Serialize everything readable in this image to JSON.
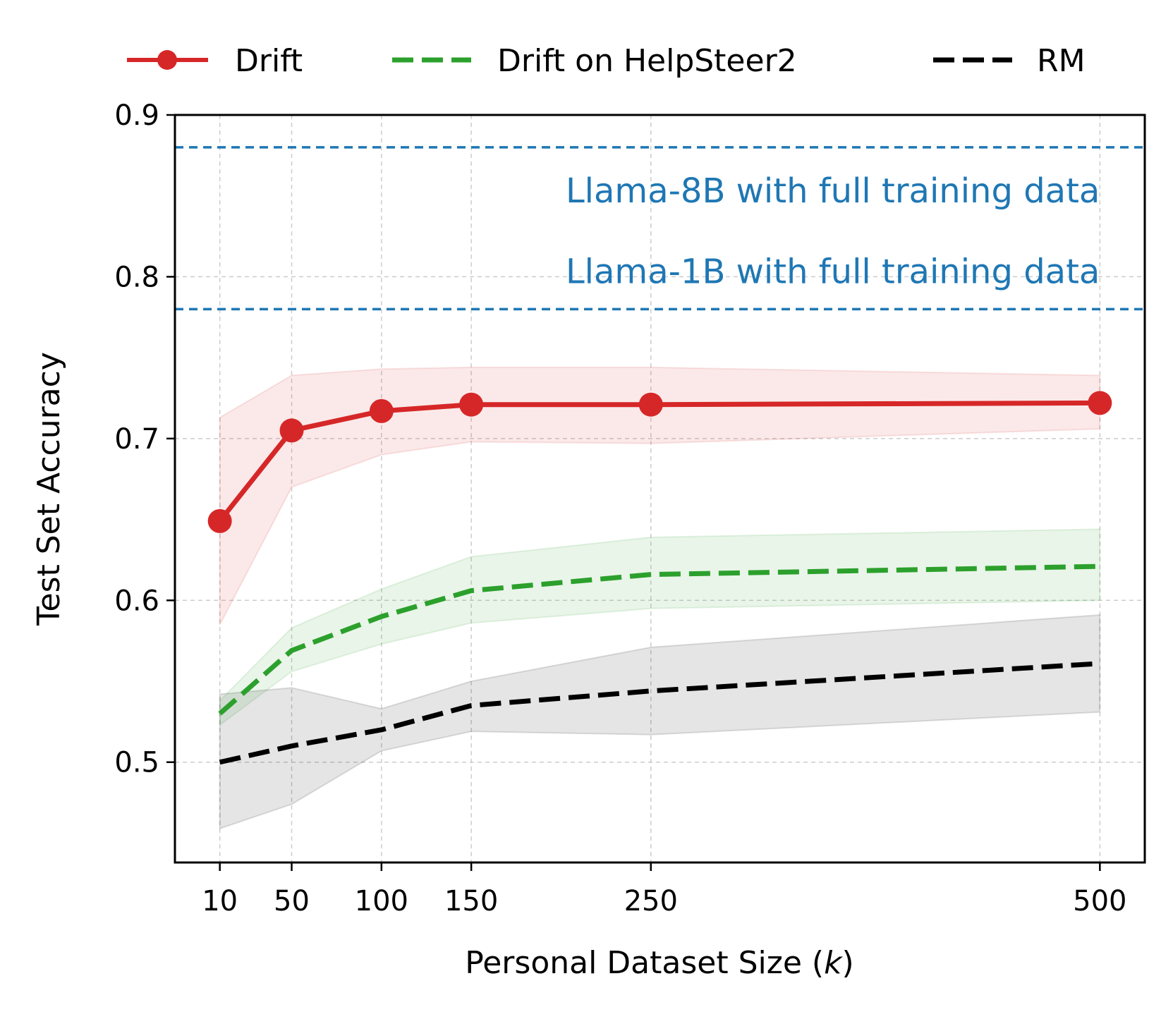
{
  "chart_data": {
    "type": "line",
    "title": "",
    "xlabel_prefix": "Personal Dataset Size (",
    "xlabel_var": "k",
    "xlabel_suffix": ")",
    "ylabel": "Test Set Accuracy",
    "x": [
      10,
      50,
      100,
      150,
      250,
      500
    ],
    "x_tick_labels": [
      "10",
      "50",
      "100",
      "150",
      "250",
      "500"
    ],
    "xlim": [
      -15,
      525
    ],
    "ylim": [
      0.438,
      0.9
    ],
    "y_ticks": [
      0.5,
      0.6,
      0.7,
      0.8,
      0.9
    ],
    "y_tick_labels": [
      "0.5",
      "0.6",
      "0.7",
      "0.8",
      "0.9"
    ],
    "grid": true,
    "legend_position": "top",
    "series": [
      {
        "name": "Drift",
        "style": "solid-marker",
        "color": "#d62728",
        "values": [
          0.649,
          0.705,
          0.717,
          0.721,
          0.721,
          0.722
        ],
        "lower": [
          0.585,
          0.67,
          0.69,
          0.698,
          0.697,
          0.706
        ],
        "upper": [
          0.713,
          0.739,
          0.743,
          0.744,
          0.744,
          0.739
        ]
      },
      {
        "name": "Drift on HelpSteer2",
        "style": "dashed",
        "color": "#2ca02c",
        "values": [
          0.53,
          0.569,
          0.59,
          0.606,
          0.616,
          0.621
        ],
        "lower": [
          0.523,
          0.556,
          0.573,
          0.586,
          0.595,
          0.6
        ],
        "upper": [
          0.538,
          0.583,
          0.607,
          0.627,
          0.639,
          0.644
        ]
      },
      {
        "name": "RM",
        "style": "dashed",
        "color": "#000000",
        "values": [
          0.5,
          0.51,
          0.52,
          0.535,
          0.544,
          0.561
        ],
        "lower": [
          0.459,
          0.474,
          0.507,
          0.519,
          0.517,
          0.531
        ],
        "upper": [
          0.542,
          0.546,
          0.533,
          0.55,
          0.571,
          0.591
        ]
      }
    ],
    "reference_lines": [
      {
        "label": "Llama-8B with full training data",
        "y": 0.88,
        "color": "#1f77b4",
        "label_y": 0.853
      },
      {
        "label": "Llama-1B with full training data",
        "y": 0.78,
        "color": "#1f77b4",
        "label_y": 0.803
      }
    ]
  }
}
